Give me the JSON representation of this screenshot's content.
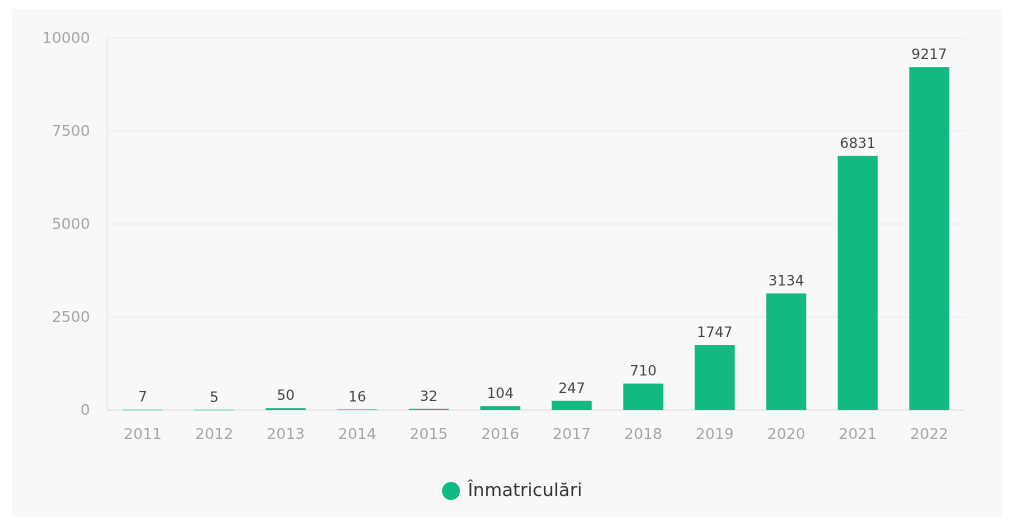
{
  "chart_data": {
    "type": "bar",
    "categories": [
      "2011",
      "2012",
      "2013",
      "2014",
      "2015",
      "2016",
      "2017",
      "2018",
      "2019",
      "2020",
      "2021",
      "2022"
    ],
    "series": [
      {
        "name": "Înmatriculări",
        "values": [
          7,
          5,
          50,
          16,
          32,
          104,
          247,
          710,
          1747,
          3134,
          6831,
          9217
        ],
        "color": "#12b981"
      }
    ],
    "yticks": [
      0,
      2500,
      5000,
      7500,
      10000
    ],
    "ylim": [
      0,
      10000
    ],
    "title": "",
    "xlabel": "",
    "ylabel": "",
    "grid": true,
    "legend": "bottom-center"
  }
}
